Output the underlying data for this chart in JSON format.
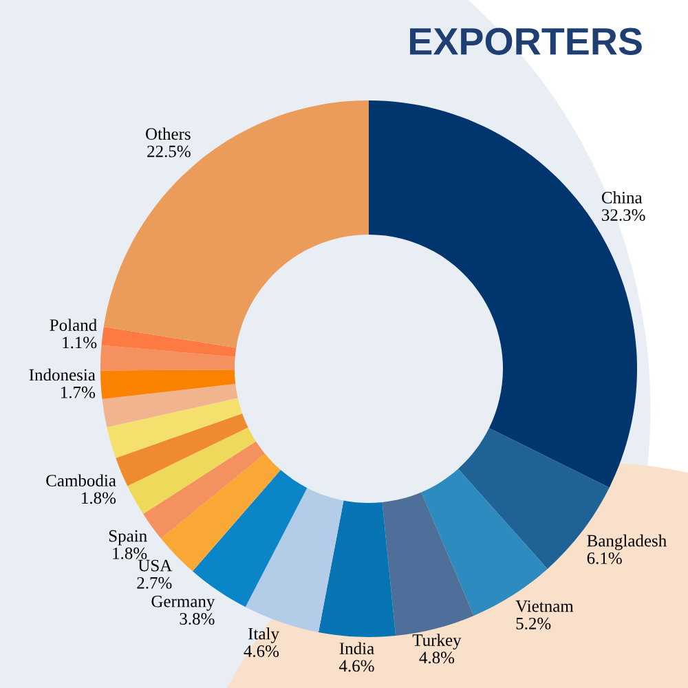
{
  "chart_data": {
    "type": "donut",
    "title": "EXPORTERS",
    "categories": [
      "China",
      "Bangladesh",
      "Vietnam",
      "Turkey",
      "India",
      "Italy",
      "Germany",
      "USA",
      "Spain",
      null,
      "Cambodia",
      null,
      null,
      "Indonesia",
      null,
      "Poland",
      "Others"
    ],
    "values": [
      32.3,
      6.1,
      5.2,
      4.8,
      4.6,
      4.6,
      3.8,
      2.7,
      1.8,
      1.9,
      1.8,
      1.9,
      1.7,
      1.7,
      1.5,
      1.1,
      22.5
    ],
    "value_labels": [
      "32.3%",
      "6.1%",
      "5.2%",
      "4.8%",
      "4.6%",
      "4.6%",
      "3.8%",
      "2.7%",
      "1.8%",
      null,
      "1.8%",
      null,
      null,
      "1.7%",
      null,
      "1.1%",
      "22.5%"
    ],
    "colors": [
      "#00356e",
      "#1f6396",
      "#2e8bc0",
      "#4f6f9b",
      "#0774b3",
      "#b3cde9",
      "#0a86c8",
      "#f9a836",
      "#f4915e",
      "#eed95a",
      "#f08a30",
      "#f5e06e",
      "#f2b48f",
      "#fb8200",
      "#f4915e",
      "#fd7a42",
      "#eb9c5a"
    ],
    "legend": false
  }
}
